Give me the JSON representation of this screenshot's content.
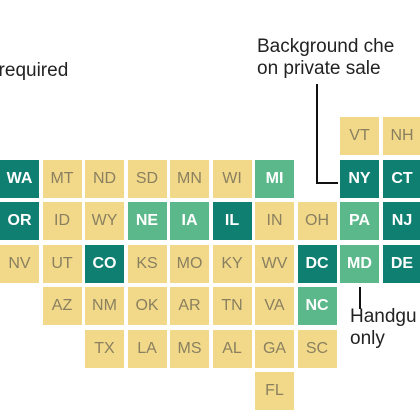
{
  "labels": {
    "top_left": "t required",
    "top_right": [
      "Background che",
      "on private sale"
    ],
    "bottom_right": [
      "Handgu",
      "only"
    ]
  },
  "colors": {
    "tier0": "#f2d98a",
    "tier1": "#5bb88a",
    "tier2": "#0f7f72"
  },
  "states": [
    {
      "abbr": "VT",
      "row": 0,
      "col": 8,
      "tier": 0
    },
    {
      "abbr": "NH",
      "row": 0,
      "col": 9,
      "tier": 0
    },
    {
      "abbr": "WA",
      "row": 1,
      "col": 0,
      "tier": 2
    },
    {
      "abbr": "MT",
      "row": 1,
      "col": 1,
      "tier": 0
    },
    {
      "abbr": "ND",
      "row": 1,
      "col": 2,
      "tier": 0
    },
    {
      "abbr": "SD",
      "row": 1,
      "col": 3,
      "tier": 0
    },
    {
      "abbr": "MN",
      "row": 1,
      "col": 4,
      "tier": 0
    },
    {
      "abbr": "WI",
      "row": 1,
      "col": 5,
      "tier": 0
    },
    {
      "abbr": "MI",
      "row": 1,
      "col": 6,
      "tier": 1
    },
    {
      "abbr": "NY",
      "row": 1,
      "col": 8,
      "tier": 2
    },
    {
      "abbr": "CT",
      "row": 1,
      "col": 9,
      "tier": 2
    },
    {
      "abbr": "OR",
      "row": 2,
      "col": 0,
      "tier": 2
    },
    {
      "abbr": "ID",
      "row": 2,
      "col": 1,
      "tier": 0
    },
    {
      "abbr": "WY",
      "row": 2,
      "col": 2,
      "tier": 0
    },
    {
      "abbr": "NE",
      "row": 2,
      "col": 3,
      "tier": 1
    },
    {
      "abbr": "IA",
      "row": 2,
      "col": 4,
      "tier": 1
    },
    {
      "abbr": "IL",
      "row": 2,
      "col": 5,
      "tier": 2
    },
    {
      "abbr": "IN",
      "row": 2,
      "col": 6,
      "tier": 0
    },
    {
      "abbr": "OH",
      "row": 2,
      "col": 7,
      "tier": 0
    },
    {
      "abbr": "PA",
      "row": 2,
      "col": 8,
      "tier": 1
    },
    {
      "abbr": "NJ",
      "row": 2,
      "col": 9,
      "tier": 2
    },
    {
      "abbr": "NV",
      "row": 3,
      "col": 0,
      "tier": 0
    },
    {
      "abbr": "UT",
      "row": 3,
      "col": 1,
      "tier": 0
    },
    {
      "abbr": "CO",
      "row": 3,
      "col": 2,
      "tier": 2
    },
    {
      "abbr": "KS",
      "row": 3,
      "col": 3,
      "tier": 0
    },
    {
      "abbr": "MO",
      "row": 3,
      "col": 4,
      "tier": 0
    },
    {
      "abbr": "KY",
      "row": 3,
      "col": 5,
      "tier": 0
    },
    {
      "abbr": "WV",
      "row": 3,
      "col": 6,
      "tier": 0
    },
    {
      "abbr": "DC",
      "row": 3,
      "col": 7,
      "tier": 2
    },
    {
      "abbr": "MD",
      "row": 3,
      "col": 8,
      "tier": 1
    },
    {
      "abbr": "DE",
      "row": 3,
      "col": 9,
      "tier": 2
    },
    {
      "abbr": "AZ",
      "row": 4,
      "col": 1,
      "tier": 0
    },
    {
      "abbr": "NM",
      "row": 4,
      "col": 2,
      "tier": 0
    },
    {
      "abbr": "OK",
      "row": 4,
      "col": 3,
      "tier": 0
    },
    {
      "abbr": "AR",
      "row": 4,
      "col": 4,
      "tier": 0
    },
    {
      "abbr": "TN",
      "row": 4,
      "col": 5,
      "tier": 0
    },
    {
      "abbr": "VA",
      "row": 4,
      "col": 6,
      "tier": 0
    },
    {
      "abbr": "NC",
      "row": 4,
      "col": 7,
      "tier": 1
    },
    {
      "abbr": "TX",
      "row": 5,
      "col": 2,
      "tier": 0
    },
    {
      "abbr": "LA",
      "row": 5,
      "col": 3,
      "tier": 0
    },
    {
      "abbr": "MS",
      "row": 5,
      "col": 4,
      "tier": 0
    },
    {
      "abbr": "AL",
      "row": 5,
      "col": 5,
      "tier": 0
    },
    {
      "abbr": "GA",
      "row": 5,
      "col": 6,
      "tier": 0
    },
    {
      "abbr": "SC",
      "row": 5,
      "col": 7,
      "tier": 0
    },
    {
      "abbr": "FL",
      "row": 6,
      "col": 6,
      "tier": 0
    }
  ]
}
